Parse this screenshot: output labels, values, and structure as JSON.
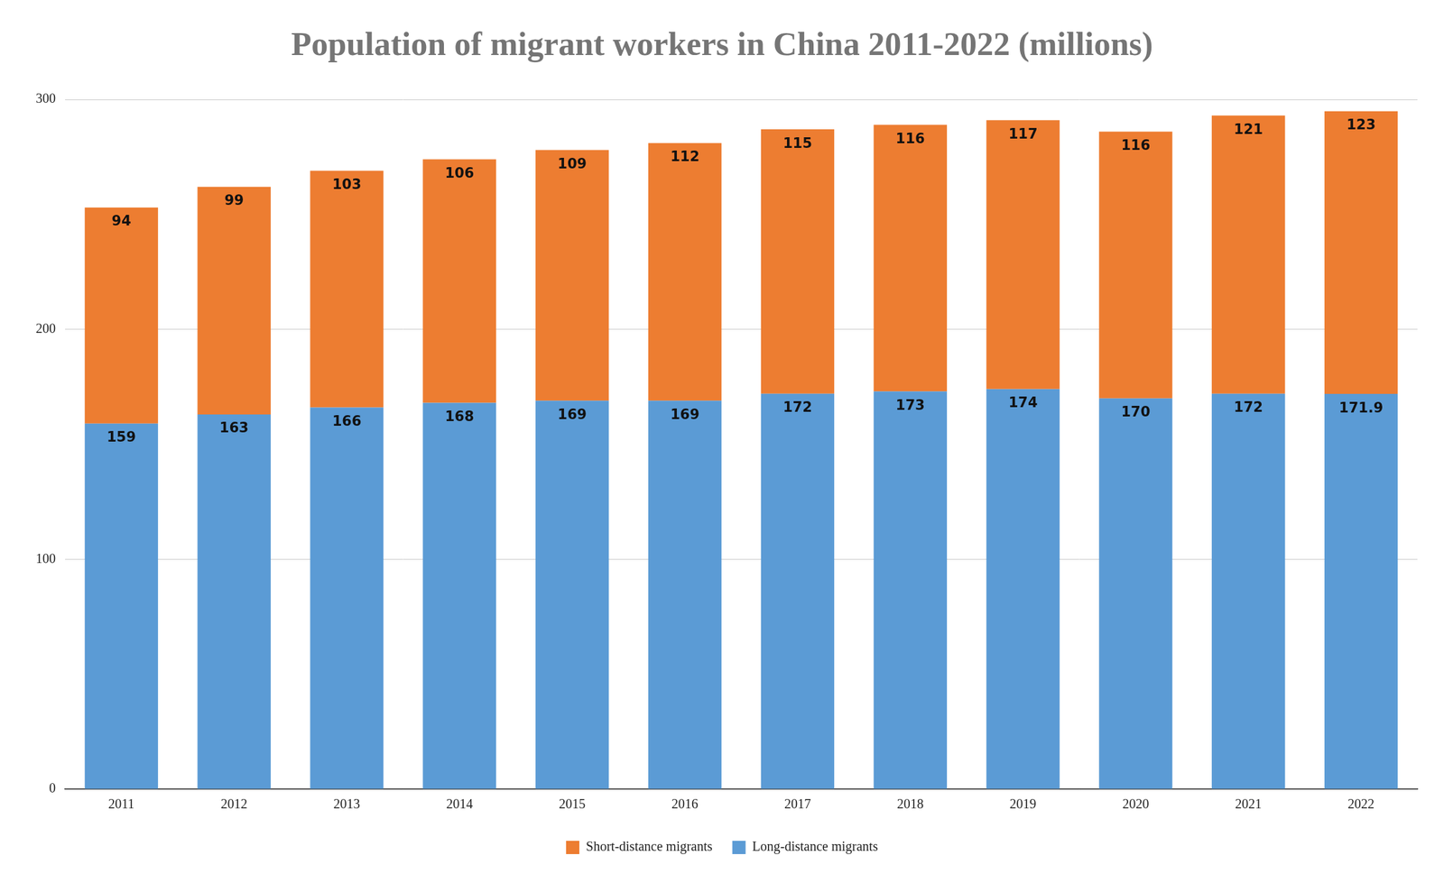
{
  "chart_data": {
    "type": "bar",
    "title": "Population of migrant workers in China 2011-2022 (millions)",
    "categories": [
      "2011",
      "2012",
      "2013",
      "2014",
      "2015",
      "2016",
      "2017",
      "2018",
      "2019",
      "2020",
      "2021",
      "2022"
    ],
    "series": [
      {
        "name": "Long-distance migrants",
        "color": "#5b9bd5",
        "values": [
          159,
          163,
          166,
          168,
          169,
          169,
          172,
          173,
          174,
          170,
          172,
          171.9
        ]
      },
      {
        "name": "Short-distance migrants",
        "color": "#ed7d31",
        "values": [
          94,
          99,
          103,
          106,
          109,
          112,
          115,
          116,
          117,
          116,
          121,
          123
        ]
      }
    ],
    "stacked": true,
    "data_labels": true,
    "ylim": [
      0,
      300
    ],
    "yticks": [
      0,
      100,
      200,
      300
    ],
    "grid": true,
    "legend": "bottom"
  }
}
